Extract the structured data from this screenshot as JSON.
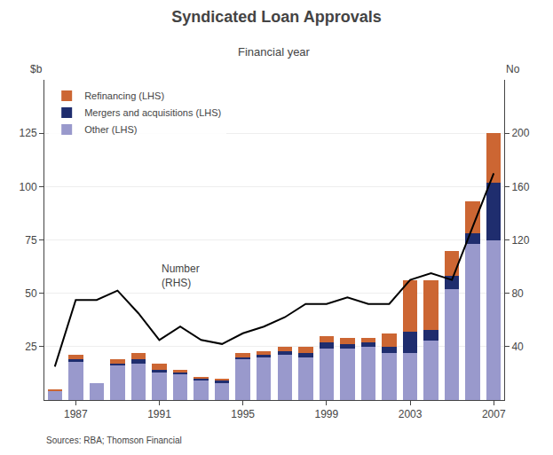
{
  "chart_data": {
    "type": "bar",
    "title": "Syndicated Loan Approvals",
    "subtitle": "Financial year",
    "source": "Sources: RBA; Thomson Financial",
    "ylabel": "$b",
    "y2label": "No",
    "categories": [
      null,
      "1987",
      null,
      null,
      null,
      "1991",
      null,
      null,
      null,
      "1995",
      null,
      null,
      null,
      "1999",
      null,
      null,
      null,
      "2003",
      null,
      null,
      null,
      "2007"
    ],
    "stacked": true,
    "series": [
      {
        "name": "Other (LHS)",
        "type": "bar",
        "color": "#9999cc",
        "values": [
          4,
          18,
          8,
          16,
          17,
          13,
          12,
          9,
          8,
          19,
          20,
          21,
          20,
          24,
          24,
          25,
          22,
          22,
          28,
          52,
          73,
          75
        ]
      },
      {
        "name": "Mergers and acquisitions (LHS)",
        "type": "bar",
        "color": "#1f2d6e",
        "values": [
          0,
          1,
          0,
          1,
          2,
          1,
          1,
          1,
          1,
          1,
          1,
          2,
          2,
          3,
          2,
          2,
          3,
          10,
          5,
          6,
          5,
          27
        ]
      },
      {
        "name": "Refinancing (LHS)",
        "type": "bar",
        "color": "#cc6633",
        "values": [
          1,
          2,
          0,
          2,
          3,
          3,
          1,
          1,
          1,
          2,
          2,
          2,
          3,
          3,
          3,
          2,
          6,
          24,
          23,
          12,
          15,
          23
        ]
      },
      {
        "type": "line",
        "axis": "y2",
        "color": "#000000",
        "values": [
          25,
          75,
          75,
          82,
          65,
          45,
          55,
          45,
          42,
          50,
          55,
          62,
          72,
          72,
          77,
          72,
          72,
          90,
          95,
          90,
          130,
          170
        ]
      }
    ],
    "ylim": [
      0,
      150
    ],
    "yticks": [
      25,
      50,
      75,
      100,
      125
    ],
    "y2lim": [
      0,
      240
    ],
    "y2ticks": [
      40,
      80,
      120,
      160,
      200
    ],
    "grid": true,
    "legend": "upper left",
    "annotations": [
      {
        "text": "Number\n(RHS)",
        "x": "1991",
        "y": 58
      }
    ]
  }
}
